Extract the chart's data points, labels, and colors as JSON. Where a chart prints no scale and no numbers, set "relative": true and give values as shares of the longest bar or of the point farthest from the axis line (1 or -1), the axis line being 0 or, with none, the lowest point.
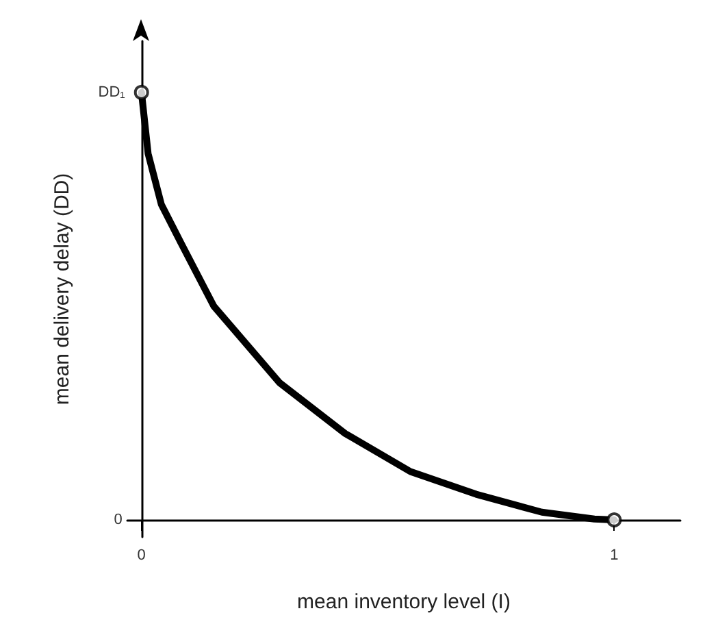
{
  "chart_data": {
    "type": "line",
    "xlabel": "mean inventory level (I)",
    "ylabel": "mean delivery delay (DD)",
    "relative": true,
    "xlim": [
      -0.03,
      1.14
    ],
    "xticks": [
      0,
      1
    ],
    "annotations": [
      {
        "text": "DD₁",
        "x": 0,
        "y": 1
      },
      "0"
    ],
    "series": [
      {
        "color": "#000000",
        "marker": "none",
        "x": [
          0,
          0.014,
          0.042,
          0.083,
          0.153,
          0.292,
          0.431,
          0.569,
          0.708,
          0.847,
          0.958,
          1
        ],
        "values": [
          1,
          0.857,
          0.738,
          0.649,
          0.5,
          0.321,
          0.202,
          0.113,
          0.06,
          0.018,
          0.002,
          0
        ]
      },
      {
        "type": "scatter",
        "color": "#000000",
        "marker": "circle",
        "x": [
          0,
          1
        ],
        "values": [
          1,
          0
        ]
      }
    ]
  }
}
